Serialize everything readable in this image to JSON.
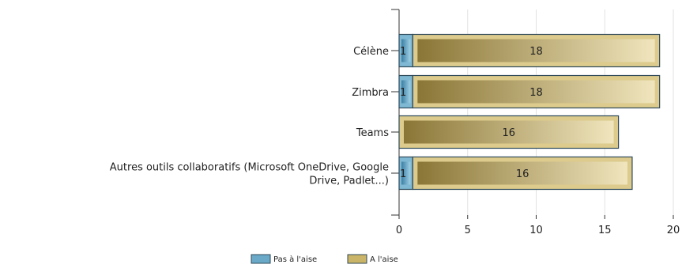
{
  "chart_data": {
    "type": "bar",
    "orientation": "horizontal",
    "stacked": true,
    "categories": [
      "Célène",
      "Zimbra",
      "Teams",
      "Autres outils collaboratifs (Microsoft OneDrive, Google Drive, Padlet...)"
    ],
    "category_lines": [
      [
        "Célène"
      ],
      [
        "Zimbra"
      ],
      [
        "Teams"
      ],
      [
        "Autres outils collaboratifs (Microsoft OneDrive, Google",
        "Drive, Padlet...)"
      ]
    ],
    "series": [
      {
        "name": "Pas à l'aise",
        "values": [
          1,
          1,
          0,
          1
        ],
        "color": "#6aaac8"
      },
      {
        "name": "A l'aise",
        "values": [
          18,
          18,
          16,
          16
        ],
        "color": "#c9b467"
      }
    ],
    "xlim": [
      0,
      20
    ],
    "xticks": [
      0,
      5,
      10,
      15,
      20
    ],
    "grid": true,
    "legend_position": "bottom",
    "title": "",
    "xlabel": "",
    "ylabel": ""
  },
  "legend": {
    "items": [
      {
        "label": "Pas à l'aise",
        "color": "#6aaac8"
      },
      {
        "label": "A l'aise",
        "color": "#c9b467"
      }
    ]
  }
}
